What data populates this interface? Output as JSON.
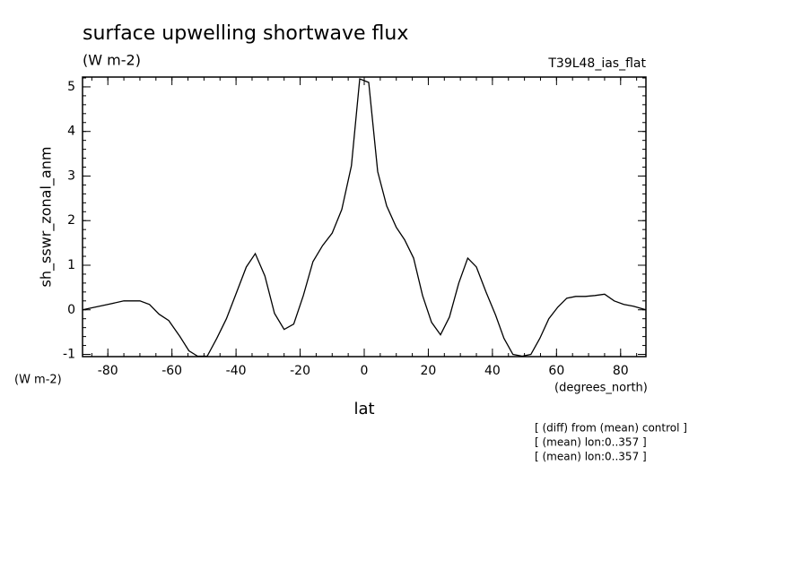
{
  "chart_data": {
    "type": "line",
    "title": "surface upwelling shortwave flux",
    "subtitle": "(W m-2)",
    "annotation": "T39L48_ias_flat",
    "ylabel": "sh_sswr_zonal_anm",
    "yunits": "(W m-2)",
    "xlabel": "lat",
    "xunits": "(degrees_north)",
    "notes": [
      "[ (diff) from (mean) control ]",
      "[ (mean) lon:0..357 ]",
      "[ (mean) lon:0..357 ]"
    ],
    "x": [
      -87.9,
      -80,
      -75,
      -70,
      -67,
      -64,
      -61,
      -57.5,
      -54.7,
      -52,
      -49,
      -46,
      -43,
      -40,
      -36.8,
      -34,
      -31,
      -28,
      -25,
      -22,
      -19,
      -16,
      -13,
      -10,
      -7,
      -4,
      -1.4,
      1.4,
      4.2,
      7,
      10,
      12.6,
      15.4,
      18.2,
      21,
      23.8,
      26.6,
      29.5,
      32.3,
      35,
      38,
      41,
      43.6,
      46.4,
      49.3,
      52,
      54.8,
      57.6,
      60.4,
      63.2,
      66,
      69,
      72,
      75,
      78,
      81,
      84,
      87.9
    ],
    "series": [
      {
        "name": "sh_sswr_zonal_anm",
        "color": "#000000",
        "values": [
          0,
          0.12,
          0.2,
          0.2,
          0.12,
          -0.1,
          -0.24,
          -0.6,
          -0.92,
          -1.04,
          -1.04,
          -0.64,
          -0.2,
          0.36,
          0.96,
          1.26,
          0.76,
          -0.08,
          -0.44,
          -0.32,
          0.32,
          1.08,
          1.44,
          1.72,
          2.25,
          3.23,
          5.18,
          5.1,
          3.1,
          2.33,
          1.85,
          1.57,
          1.16,
          0.32,
          -0.28,
          -0.56,
          -0.16,
          0.6,
          1.16,
          0.96,
          0.4,
          -0.12,
          -0.64,
          -1,
          -1.04,
          -1,
          -0.64,
          -0.2,
          0.06,
          0.26,
          0.3,
          0.3,
          0.32,
          0.35,
          0.2,
          0.12,
          0.08,
          0
        ]
      }
    ],
    "xlim": [
      -87.9,
      87.9
    ],
    "ylim": [
      -1.05,
      5.22
    ],
    "xticks": [
      -80,
      -60,
      -40,
      -20,
      0,
      20,
      40,
      60,
      80
    ],
    "yticks": [
      -1,
      0,
      1,
      2,
      3,
      4,
      5
    ]
  }
}
